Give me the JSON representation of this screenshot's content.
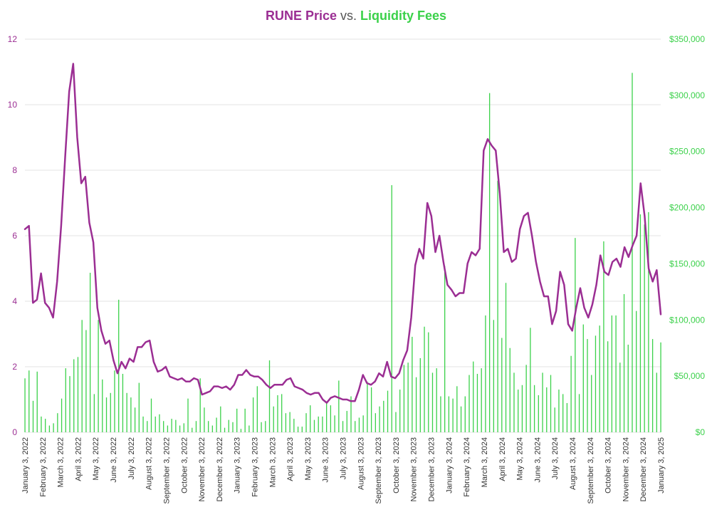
{
  "chart_data": {
    "type": "bar+line",
    "title": {
      "price": "RUNE Price",
      "vs": " vs. ",
      "fees": "Liquidity Fees"
    },
    "colors": {
      "price": "#9b2e93",
      "fees": "#3bd14a",
      "grid": "#e3e3e3"
    },
    "grid": true,
    "y_left": {
      "min": 0,
      "max": 12,
      "ticks": [
        "0",
        "2",
        "4",
        "6",
        "8",
        "10",
        "12"
      ]
    },
    "y_right": {
      "min": 0,
      "max": 350000,
      "ticks": [
        "$0",
        "$50,000",
        "$100,000",
        "$150,000",
        "$200,000",
        "$250,000",
        "$300,000",
        "$350,000"
      ]
    },
    "x_start": "January 3, 2022",
    "x_end": "January 3, 2025",
    "x_tick_labels": [
      "January 3, 2022",
      "February 3, 2022",
      "March 3, 2022",
      "April 3, 2022",
      "May 3, 2022",
      "June 3, 2022",
      "July 3, 2022",
      "August 3, 2022",
      "September 3, 2022",
      "October 3, 2022",
      "November 3, 2022",
      "December 3, 2022",
      "January 3, 2023",
      "February 3, 2023",
      "March 3, 2023",
      "April 3, 2023",
      "May 3, 2023",
      "June 3, 2023",
      "July 3, 2023",
      "August 3, 2023",
      "September 3, 2023",
      "October 3, 2023",
      "November 3, 2023",
      "December 3, 2023",
      "January 3, 2024",
      "February 3, 2024",
      "March 3, 2024",
      "April 3, 2024",
      "May 3, 2024",
      "June 3, 2024",
      "July 3, 2024",
      "August 3, 2024",
      "September 3, 2024",
      "October 3, 2024",
      "November 3, 2024",
      "December 3, 2024",
      "January 3, 2025"
    ],
    "series": [
      {
        "name": "RUNE Price",
        "axis": "left",
        "kind": "line",
        "values": [
          6.2,
          6.3,
          3.95,
          4.05,
          4.85,
          3.95,
          3.8,
          3.5,
          4.6,
          6.3,
          8.4,
          10.4,
          11.25,
          9.0,
          7.6,
          7.8,
          6.4,
          5.8,
          3.8,
          3.1,
          2.7,
          2.8,
          2.2,
          1.8,
          2.15,
          1.95,
          2.25,
          2.15,
          2.6,
          2.6,
          2.75,
          2.8,
          2.15,
          1.85,
          1.9,
          2.0,
          1.7,
          1.65,
          1.6,
          1.65,
          1.55,
          1.55,
          1.65,
          1.6,
          1.15,
          1.2,
          1.25,
          1.4,
          1.4,
          1.35,
          1.4,
          1.3,
          1.45,
          1.75,
          1.75,
          1.9,
          1.75,
          1.7,
          1.7,
          1.6,
          1.45,
          1.35,
          1.45,
          1.45,
          1.45,
          1.6,
          1.65,
          1.4,
          1.35,
          1.3,
          1.2,
          1.15,
          1.2,
          1.2,
          1.0,
          0.9,
          1.05,
          1.1,
          1.05,
          1.0,
          1.0,
          0.95,
          0.95,
          1.3,
          1.75,
          1.5,
          1.45,
          1.55,
          1.8,
          1.7,
          2.15,
          1.7,
          1.65,
          1.8,
          2.2,
          2.5,
          3.5,
          5.1,
          5.6,
          5.3,
          7.0,
          6.6,
          5.5,
          6.0,
          5.2,
          4.5,
          4.35,
          4.15,
          4.25,
          4.25,
          5.15,
          5.5,
          5.4,
          5.6,
          8.6,
          8.95,
          8.75,
          8.6,
          7.3,
          5.5,
          5.6,
          5.2,
          5.3,
          6.2,
          6.6,
          6.7,
          6.0,
          5.2,
          4.6,
          4.15,
          4.15,
          3.3,
          3.7,
          4.9,
          4.5,
          3.3,
          3.1,
          3.8,
          4.4,
          3.8,
          3.5,
          3.9,
          4.5,
          5.4,
          4.9,
          4.8,
          5.2,
          5.3,
          5.05,
          5.65,
          5.35,
          5.7,
          6.0,
          7.6,
          6.6,
          5.0,
          4.6,
          4.95,
          3.6
        ]
      },
      {
        "name": "Liquidity Fees",
        "axis": "right",
        "kind": "bar",
        "values": [
          48000,
          55000,
          28000,
          54000,
          14000,
          12000,
          6000,
          8000,
          17000,
          30000,
          57000,
          50000,
          65000,
          67000,
          100000,
          91000,
          142000,
          34000,
          100000,
          47000,
          31000,
          35000,
          55000,
          118000,
          52000,
          35000,
          31000,
          22000,
          44000,
          14000,
          10000,
          30000,
          14000,
          16000,
          10000,
          6000,
          12000,
          11000,
          6000,
          8000,
          30000,
          4000,
          10000,
          48000,
          22000,
          10000,
          6000,
          13000,
          23000,
          4000,
          11000,
          9000,
          21000,
          3000,
          21000,
          6000,
          31000,
          41000,
          9000,
          10000,
          64000,
          23000,
          33000,
          34000,
          17000,
          18000,
          12000,
          5000,
          5000,
          17000,
          24000,
          11000,
          14000,
          14000,
          27000,
          24000,
          15000,
          46000,
          10000,
          19000,
          32000,
          10000,
          13000,
          15000,
          45000,
          40000,
          17000,
          23000,
          28000,
          37000,
          220000,
          18000,
          38000,
          60000,
          62000,
          85000,
          49000,
          66000,
          94000,
          89000,
          53000,
          57000,
          32000,
          148000,
          32000,
          30000,
          41000,
          23000,
          32000,
          51000,
          63000,
          52000,
          57000,
          104000,
          302000,
          100000,
          224000,
          84000,
          133000,
          75000,
          53000,
          38000,
          42000,
          60000,
          93000,
          42000,
          33000,
          53000,
          40000,
          51000,
          22000,
          38000,
          34000,
          26000,
          68000,
          173000,
          34000,
          96000,
          83000,
          51000,
          86000,
          95000,
          170000,
          81000,
          104000,
          104000,
          62000,
          123000,
          78000,
          320000,
          108000,
          194000,
          185000,
          196000,
          83000,
          53000,
          80000
        ]
      }
    ]
  }
}
